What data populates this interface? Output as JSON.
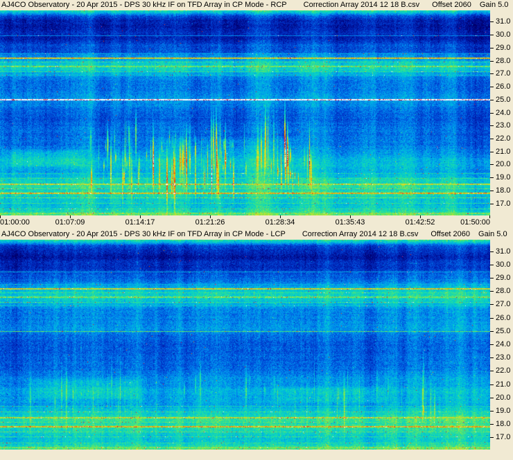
{
  "window": {
    "background": "#F1EAD3",
    "text_color": "#000000"
  },
  "chart_data": [
    {
      "type": "heatmap",
      "subtype": "radio-spectrogram",
      "title": "AJ4CO Observatory - 20 Apr 2015 - DPS 30 kHz IF on TFD Array in CP Mode - RCP",
      "correction_file": "Correction Array 2014 12 18 B.csv",
      "offset_label": "Offset 2060",
      "gain_label": "Gain 5.0",
      "x_ticks": [
        "01:00:00",
        "01:07:09",
        "01:14:17",
        "01:21:26",
        "01:28:34",
        "01:35:43",
        "01:42:52",
        "01:50:00"
      ],
      "y_ticks": [
        "31.0",
        "30.0",
        "29.0",
        "28.0",
        "27.0",
        "26.0",
        "25.0",
        "24.0",
        "23.0",
        "22.0",
        "21.0",
        "20.0",
        "19.0",
        "18.0",
        "17.0"
      ],
      "y_range": [
        16.1,
        31.9
      ],
      "legend": "none",
      "grid": false,
      "seed": 1337,
      "noise": 0.16,
      "profile": [
        [
          31.95,
          0.6
        ],
        [
          31.75,
          0.45
        ],
        [
          31.45,
          0.22
        ],
        [
          31.1,
          0.13
        ],
        [
          30.5,
          0.13
        ],
        [
          30.15,
          0.18
        ],
        [
          29.85,
          0.15
        ],
        [
          29.5,
          0.2
        ],
        [
          29.1,
          0.24
        ],
        [
          28.7,
          0.28
        ],
        [
          28.4,
          0.36
        ],
        [
          28.0,
          0.44
        ],
        [
          27.6,
          0.5
        ],
        [
          27.3,
          0.46
        ],
        [
          27.0,
          0.4
        ],
        [
          26.6,
          0.32
        ],
        [
          26.1,
          0.3
        ],
        [
          25.6,
          0.33
        ],
        [
          25.1,
          0.36
        ],
        [
          24.7,
          0.32
        ],
        [
          24.2,
          0.29
        ],
        [
          23.5,
          0.27
        ],
        [
          22.8,
          0.28
        ],
        [
          22.2,
          0.3
        ],
        [
          21.6,
          0.32
        ],
        [
          21.0,
          0.35
        ],
        [
          20.4,
          0.4
        ],
        [
          19.9,
          0.42
        ],
        [
          19.5,
          0.38
        ],
        [
          19.1,
          0.44
        ],
        [
          18.7,
          0.5
        ],
        [
          18.4,
          0.55
        ],
        [
          18.1,
          0.52
        ],
        [
          17.85,
          0.58
        ],
        [
          17.55,
          0.52
        ],
        [
          17.25,
          0.48
        ],
        [
          16.95,
          0.46
        ],
        [
          16.6,
          0.48
        ],
        [
          16.35,
          0.55
        ],
        [
          16.1,
          0.64
        ]
      ],
      "lines": [
        {
          "f": 29.95,
          "amp": 0.33,
          "w": 1,
          "speckle": 0.01
        },
        {
          "f": 28.55,
          "amp": 0.4,
          "w": 1,
          "speckle": 0.02
        },
        {
          "f": 28.2,
          "amp": 0.76,
          "w": 2,
          "speckle": 0.05
        },
        {
          "f": 27.9,
          "amp": 0.55,
          "w": 1,
          "speckle": 0.03
        },
        {
          "f": 27.55,
          "amp": 0.62,
          "w": 2,
          "speckle": 0.05
        },
        {
          "f": 27.2,
          "amp": 0.55,
          "w": 1,
          "speckle": 0.06
        },
        {
          "f": 26.9,
          "amp": 0.45,
          "w": 1,
          "speckle": 0.04
        },
        {
          "f": 25.0,
          "amp": 1.08,
          "w": 2,
          "speckle": 0.02
        },
        {
          "f": 19.35,
          "amp": 0.5,
          "w": 1,
          "speckle": 0.03
        },
        {
          "f": 18.95,
          "amp": 0.55,
          "w": 1,
          "speckle": 0.04
        },
        {
          "f": 18.5,
          "amp": 0.7,
          "w": 2,
          "speckle": 0.08
        },
        {
          "f": 18.15,
          "amp": 0.6,
          "w": 1,
          "speckle": 0.05
        },
        {
          "f": 17.8,
          "amp": 0.78,
          "w": 2,
          "speckle": 0.1
        },
        {
          "f": 17.45,
          "amp": 0.6,
          "w": 1,
          "speckle": 0.05
        },
        {
          "f": 17.05,
          "amp": 0.55,
          "w": 1,
          "speckle": 0.04
        },
        {
          "f": 16.6,
          "amp": 0.55,
          "w": 1,
          "speckle": 0.03
        },
        {
          "f": 16.25,
          "amp": 0.62,
          "w": 2,
          "speckle": 0.04
        }
      ],
      "blobs": [
        {
          "x0": 0.0,
          "x1": 0.18,
          "f0": 19.8,
          "f1": 21.3,
          "boost": 0.09
        },
        {
          "x0": 0.3,
          "x1": 0.62,
          "f0": 19.0,
          "f1": 22.2,
          "boost": 0.06
        }
      ],
      "streaks": {
        "count": 110,
        "x0": 0.18,
        "x1": 0.64,
        "f0": 18.8,
        "f1": 22.4,
        "amp": 0.3
      },
      "colormap": [
        [
          0.0,
          "#00006E"
        ],
        [
          0.1,
          "#0018A8"
        ],
        [
          0.22,
          "#0048D8"
        ],
        [
          0.34,
          "#0090F0"
        ],
        [
          0.45,
          "#00C8D8"
        ],
        [
          0.55,
          "#20E0A0"
        ],
        [
          0.65,
          "#80E850"
        ],
        [
          0.75,
          "#E8E020"
        ],
        [
          0.84,
          "#F8A000"
        ],
        [
          0.91,
          "#F04010"
        ],
        [
          0.96,
          "#D00050"
        ],
        [
          1.0,
          "#FFFFFF"
        ]
      ]
    },
    {
      "type": "heatmap",
      "subtype": "radio-spectrogram",
      "title": "AJ4CO Observatory - 20 Apr 2015 - DPS 30 kHz IF on TFD Array in CP Mode - LCP",
      "correction_file": "Correction Array 2014 12 18 B.csv",
      "offset_label": "Offset 2060",
      "gain_label": "Gain 5.0",
      "x_ticks": [
        "01:00:00",
        "01:07:09",
        "01:14:17",
        "01:21:26",
        "01:28:34",
        "01:35:43",
        "01:42:52",
        "01:50:00"
      ],
      "y_ticks": [
        "31.0",
        "30.0",
        "29.0",
        "28.0",
        "27.0",
        "26.0",
        "25.0",
        "24.0",
        "23.0",
        "22.0",
        "21.0",
        "20.0",
        "19.0",
        "18.0",
        "17.0"
      ],
      "y_range": [
        16.1,
        31.9
      ],
      "legend": "none",
      "grid": false,
      "seed": 4242,
      "noise": 0.16,
      "profile": [
        [
          31.95,
          0.6
        ],
        [
          31.75,
          0.45
        ],
        [
          31.45,
          0.22
        ],
        [
          31.1,
          0.13
        ],
        [
          30.5,
          0.13
        ],
        [
          30.15,
          0.18
        ],
        [
          29.85,
          0.15
        ],
        [
          29.5,
          0.2
        ],
        [
          29.1,
          0.24
        ],
        [
          28.7,
          0.28
        ],
        [
          28.4,
          0.36
        ],
        [
          28.0,
          0.44
        ],
        [
          27.6,
          0.5
        ],
        [
          27.3,
          0.46
        ],
        [
          27.0,
          0.4
        ],
        [
          26.6,
          0.32
        ],
        [
          26.1,
          0.3
        ],
        [
          25.6,
          0.33
        ],
        [
          25.1,
          0.36
        ],
        [
          24.7,
          0.32
        ],
        [
          24.2,
          0.29
        ],
        [
          23.5,
          0.27
        ],
        [
          22.8,
          0.28
        ],
        [
          22.2,
          0.3
        ],
        [
          21.6,
          0.32
        ],
        [
          21.0,
          0.35
        ],
        [
          20.4,
          0.4
        ],
        [
          19.9,
          0.42
        ],
        [
          19.5,
          0.38
        ],
        [
          19.1,
          0.44
        ],
        [
          18.7,
          0.5
        ],
        [
          18.4,
          0.55
        ],
        [
          18.1,
          0.52
        ],
        [
          17.85,
          0.58
        ],
        [
          17.55,
          0.52
        ],
        [
          17.25,
          0.48
        ],
        [
          16.95,
          0.46
        ],
        [
          16.6,
          0.48
        ],
        [
          16.35,
          0.55
        ],
        [
          16.1,
          0.64
        ]
      ],
      "lines": [
        {
          "f": 29.45,
          "amp": 0.38,
          "w": 1,
          "speckle": 0.01
        },
        {
          "f": 28.55,
          "amp": 0.4,
          "w": 1,
          "speckle": 0.02
        },
        {
          "f": 28.2,
          "amp": 0.74,
          "w": 2,
          "speckle": 0.05
        },
        {
          "f": 27.9,
          "amp": 0.55,
          "w": 1,
          "speckle": 0.03
        },
        {
          "f": 27.55,
          "amp": 0.62,
          "w": 2,
          "speckle": 0.05
        },
        {
          "f": 27.2,
          "amp": 0.55,
          "w": 1,
          "speckle": 0.06
        },
        {
          "f": 26.9,
          "amp": 0.45,
          "w": 1,
          "speckle": 0.04
        },
        {
          "f": 25.0,
          "amp": 0.6,
          "w": 1,
          "speckle": 0.02
        },
        {
          "f": 19.35,
          "amp": 0.5,
          "w": 1,
          "speckle": 0.03
        },
        {
          "f": 18.95,
          "amp": 0.55,
          "w": 1,
          "speckle": 0.04
        },
        {
          "f": 18.5,
          "amp": 0.7,
          "w": 2,
          "speckle": 0.08
        },
        {
          "f": 18.15,
          "amp": 0.6,
          "w": 1,
          "speckle": 0.05
        },
        {
          "f": 17.8,
          "amp": 0.78,
          "w": 2,
          "speckle": 0.1
        },
        {
          "f": 17.45,
          "amp": 0.6,
          "w": 1,
          "speckle": 0.05
        },
        {
          "f": 17.05,
          "amp": 0.55,
          "w": 1,
          "speckle": 0.04
        },
        {
          "f": 16.6,
          "amp": 0.55,
          "w": 1,
          "speckle": 0.03
        },
        {
          "f": 16.25,
          "amp": 0.62,
          "w": 2,
          "speckle": 0.04
        }
      ],
      "blobs": [
        {
          "x0": 0.05,
          "x1": 0.3,
          "f0": 19.8,
          "f1": 21.5,
          "boost": 0.07
        },
        {
          "x0": 0.55,
          "x1": 0.8,
          "f0": 19.5,
          "f1": 21.0,
          "boost": 0.05
        }
      ],
      "streaks": {
        "count": 45,
        "x0": 0.05,
        "x1": 0.92,
        "f0": 19.0,
        "f1": 21.5,
        "amp": 0.16
      },
      "colormap": [
        [
          0.0,
          "#00006E"
        ],
        [
          0.1,
          "#0018A8"
        ],
        [
          0.22,
          "#0048D8"
        ],
        [
          0.34,
          "#0090F0"
        ],
        [
          0.45,
          "#00C8D8"
        ],
        [
          0.55,
          "#20E0A0"
        ],
        [
          0.65,
          "#80E850"
        ],
        [
          0.75,
          "#E8E020"
        ],
        [
          0.84,
          "#F8A000"
        ],
        [
          0.91,
          "#F04010"
        ],
        [
          0.96,
          "#D00050"
        ],
        [
          1.0,
          "#FFFFFF"
        ]
      ]
    }
  ]
}
